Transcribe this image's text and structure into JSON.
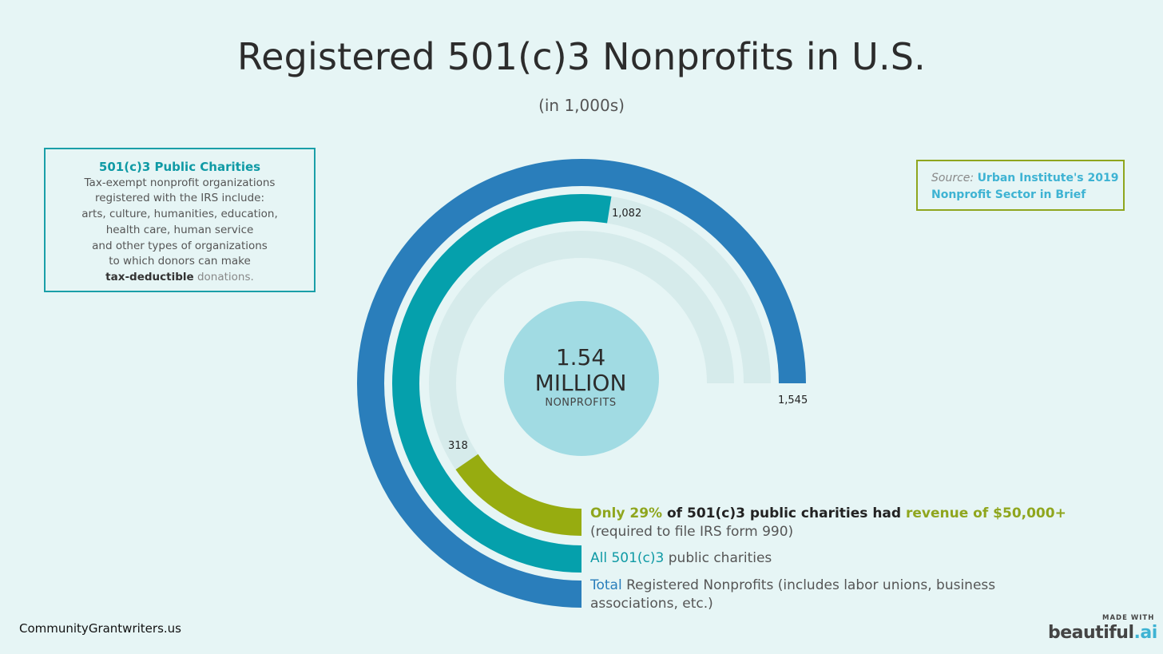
{
  "title": "Registered 501(c)3 Nonprofits in U.S.",
  "subtitle": "(in 1,000s)",
  "info_box": {
    "heading": "501(c)3 Public Charities",
    "lines": [
      "Tax-exempt nonprofit organizations",
      "registered with the IRS include:",
      "arts, culture, humanities, education,",
      "health care, human service",
      "and other types of organizations",
      "to which donors can make"
    ],
    "last_bold": "tax-deductible",
    "last_rest": " donations."
  },
  "source": {
    "label": "Source:",
    "link_line1": "Urban Institute's 2019",
    "link_line2": "Nonprofit Sector in Brief"
  },
  "center": {
    "value": "1.54",
    "unit": "MILLION",
    "caption": "NONPROFITS"
  },
  "legend": {
    "revenue": {
      "pct": "Only 29%",
      "mid": " of 501(c)3 public charities had ",
      "rev": "revenue of $50,000+",
      "line2": "(required to file IRS form 990)"
    },
    "charities": {
      "highlight": "All 501(c)3",
      "rest": " public charities"
    },
    "total": {
      "highlight": "Total",
      "rest": " Registered Nonprofits (includes labor unions, business",
      "line2": "associations, etc.)"
    }
  },
  "colors": {
    "total": "#2a7ebb",
    "charities": "#05a0ac",
    "revenue": "#97ac10",
    "track": "#d6ebeb",
    "center": "#a1dbe3",
    "background": "#e6f5f5"
  },
  "footer": {
    "site": "CommunityGrantwriters.us",
    "made_with": "MADE WITH",
    "brand_main": "beautiful",
    "brand_dot": ".ai"
  },
  "chart_data": {
    "type": "radial-bar",
    "scale_max": 1545,
    "series": [
      {
        "key": "total",
        "value": 1545,
        "label": "1,545"
      },
      {
        "key": "charities",
        "value": 1082,
        "label": "1,082"
      },
      {
        "key": "revenue",
        "value": 318,
        "label": "318"
      }
    ]
  }
}
